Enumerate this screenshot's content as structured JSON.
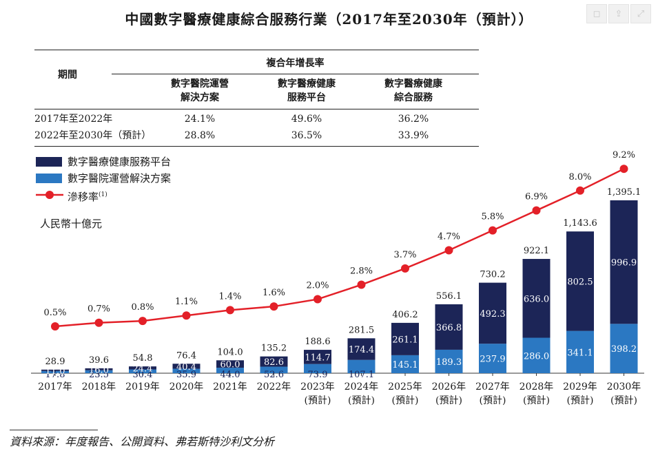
{
  "title": "中國數字醫療健康綜合服務行業（2017年至2030年（預計））",
  "window_controls": [
    "collapse-icon",
    "share-icon",
    "expand-icon"
  ],
  "cagr_table": {
    "period_header": "期間",
    "group_header": "複合年增長率",
    "columns": [
      "數字醫院運營\n解決方案",
      "數字醫療健康\n服務平台",
      "數字醫療健康\n綜合服務"
    ],
    "rows": [
      {
        "period": "2017年至2022年",
        "values": [
          "24.1%",
          "49.6%",
          "36.2%"
        ]
      },
      {
        "period": "2022年至2030年（預計）",
        "values": [
          "28.8%",
          "36.5%",
          "33.9%"
        ]
      }
    ]
  },
  "legend": [
    {
      "label": "數字醫療健康服務平台",
      "color": "#1c2557"
    },
    {
      "label": "數字醫院運營解決方案",
      "color": "#2b78c2"
    },
    {
      "label": "滲移率",
      "sup": "(1)",
      "color": "#e32028"
    }
  ],
  "unit_label": "人民幣十億元",
  "source": "資料來源：年度報告、公開資料、弗若斯特沙利文分析",
  "chart_data": {
    "type": "bar",
    "stacked": true,
    "categories": [
      "2017年",
      "2018年",
      "2019年",
      "2020年",
      "2021年",
      "2022年",
      "2023年\n(預計)",
      "2024年\n(預計)",
      "2025年\n(預計)",
      "2026年\n(預計)",
      "2027年\n(預計)",
      "2028年\n(預計)",
      "2029年\n(預計)",
      "2030年\n(預計)"
    ],
    "series": [
      {
        "name": "數字醫院運營解決方案",
        "color": "#2b78c2",
        "values": [
          17.8,
          23.5,
          30.4,
          35.9,
          44.0,
          52.6,
          73.9,
          107.1,
          145.1,
          189.3,
          237.9,
          286.0,
          341.1,
          398.2
        ]
      },
      {
        "name": "數字醫療健康服務平台",
        "color": "#1c2557",
        "values": [
          11.0,
          16.0,
          24.4,
          40.4,
          60.0,
          82.6,
          114.7,
          174.4,
          261.1,
          366.8,
          492.3,
          636.0,
          802.5,
          996.9
        ]
      }
    ],
    "totals": [
      28.9,
      39.6,
      54.8,
      76.4,
      104.0,
      135.2,
      188.6,
      281.5,
      406.2,
      556.1,
      730.2,
      922.1,
      1143.6,
      1395.1
    ],
    "value_labels": {
      "bottom": [
        "17.8",
        "23.5",
        "30.4",
        "35.9",
        "44.0",
        "52.6",
        "73.9",
        "107.1",
        "145.1",
        "189.3",
        "237.9",
        "286.0",
        "341.1",
        "398.2"
      ],
      "top": [
        "11.0",
        "16.0",
        "24.4",
        "40.4",
        "60.0",
        "82.6",
        "114.7",
        "174.4",
        "261.1",
        "366.8",
        "492.3",
        "636.0",
        "802.5",
        "996.9"
      ],
      "total": [
        "28.9",
        "39.6",
        "54.8",
        "76.4",
        "104.0",
        "135.2",
        "188.6",
        "281.5",
        "406.2",
        "556.1",
        "730.2",
        "922.1",
        "1,143.6",
        "1,395.1"
      ]
    },
    "line": {
      "name": "滲移率",
      "color": "#e32028",
      "values": [
        0.5,
        0.7,
        0.8,
        1.1,
        1.4,
        1.6,
        2.0,
        2.8,
        3.7,
        4.7,
        5.8,
        6.9,
        8.0,
        9.2
      ],
      "labels": [
        "0.5%",
        "0.7%",
        "0.8%",
        "1.1%",
        "1.4%",
        "1.6%",
        "2.0%",
        "2.8%",
        "3.7%",
        "4.7%",
        "5.8%",
        "6.9%",
        "8.0%",
        "9.2%"
      ]
    }
  }
}
